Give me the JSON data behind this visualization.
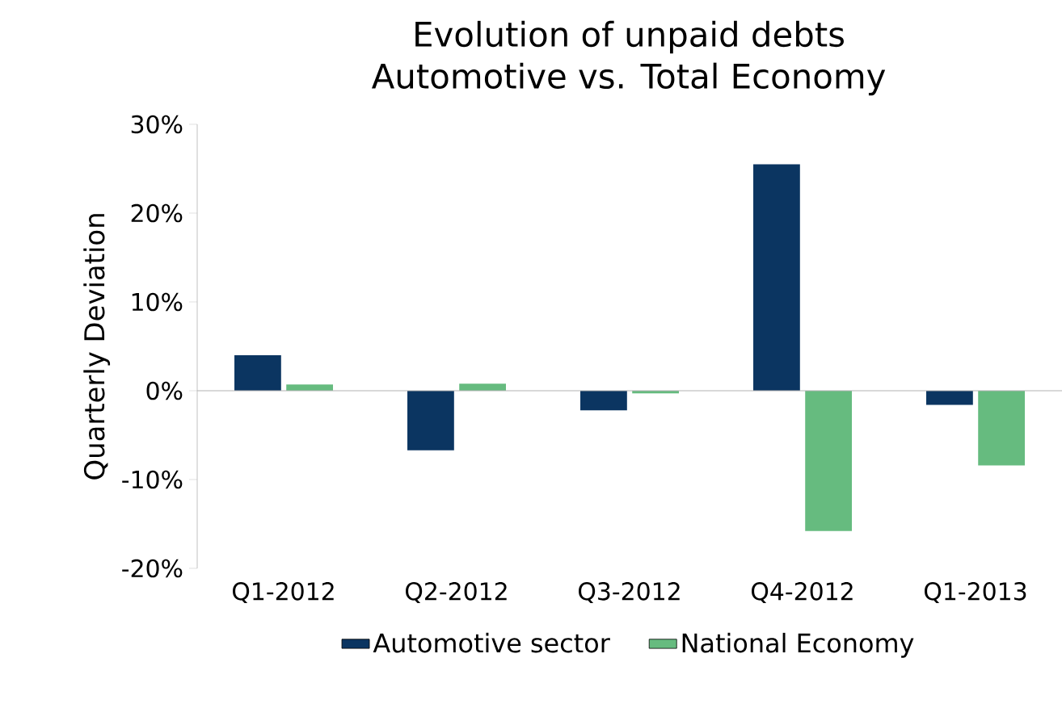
{
  "chart_data": {
    "type": "bar",
    "title": "Evolution of unpaid debts",
    "subtitle": "Automotive vs. Total Economy",
    "ylabel": "Quarterly Deviation",
    "categories": [
      "Q1-2012",
      "Q2-2012",
      "Q3-2012",
      "Q4-2012",
      "Q1-2013"
    ],
    "series": [
      {
        "name": "Automotive sector",
        "color": "#0b3561",
        "values": [
          4.0,
          -6.7,
          -2.2,
          25.5,
          -1.6
        ]
      },
      {
        "name": "National Economy",
        "color": "#66bb7f",
        "values": [
          0.7,
          0.8,
          -0.3,
          -15.8,
          -8.4
        ]
      }
    ],
    "ylim": [
      -20,
      30
    ],
    "yticks": [
      {
        "value": -20,
        "label": "-20%"
      },
      {
        "value": -10,
        "label": "-10%"
      },
      {
        "value": 0,
        "label": "0%"
      },
      {
        "value": 10,
        "label": "10%"
      },
      {
        "value": 20,
        "label": "20%"
      },
      {
        "value": 30,
        "label": "30%"
      }
    ],
    "legend": "bottom"
  }
}
